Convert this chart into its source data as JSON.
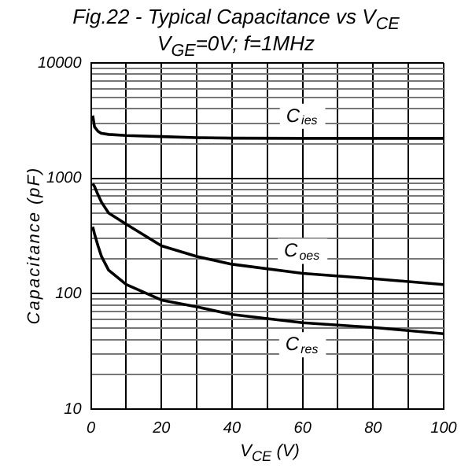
{
  "chart_data": {
    "type": "line",
    "title": "Fig.22 - Typical Capacitance vs V$_{CE}$",
    "subtitle": "V$_{GE}$=0V; f=1MHz",
    "xlabel": "V$_{CE}$ (V)",
    "ylabel": "Capacitance (pF)",
    "log": "y",
    "grid": true,
    "legend": false,
    "marker": "none",
    "line_style": "solid",
    "xlim": [
      0,
      100
    ],
    "xticks": [
      0,
      {
        "value": 10,
        "label": null
      },
      20,
      {
        "value": 30,
        "label": null
      },
      40,
      {
        "value": 50,
        "label": null
      },
      60,
      {
        "value": 70,
        "label": null
      },
      80,
      {
        "value": 90,
        "label": null
      },
      100
    ],
    "ylim": [
      10,
      10000
    ],
    "yticks": [
      10,
      100,
      1000,
      10000
    ],
    "x": [
      0.5,
      1,
      2,
      3,
      5,
      10,
      20,
      30,
      40,
      60,
      80,
      100
    ],
    "series": [
      {
        "name": "C$_{ies}$",
        "color": "#000000",
        "values": [
          3500,
          2800,
          2550,
          2450,
          2400,
          2350,
          2300,
          2250,
          2230,
          2220,
          2220,
          2220
        ]
      },
      {
        "name": "C$_{oes}$",
        "color": "#000000",
        "values": [
          900,
          850,
          720,
          620,
          500,
          400,
          260,
          210,
          180,
          150,
          135,
          120
        ]
      },
      {
        "name": "C$_{res}$",
        "color": "#000000",
        "values": [
          380,
          330,
          260,
          210,
          160,
          120,
          88,
          77,
          66,
          56,
          51,
          45
        ]
      }
    ]
  }
}
